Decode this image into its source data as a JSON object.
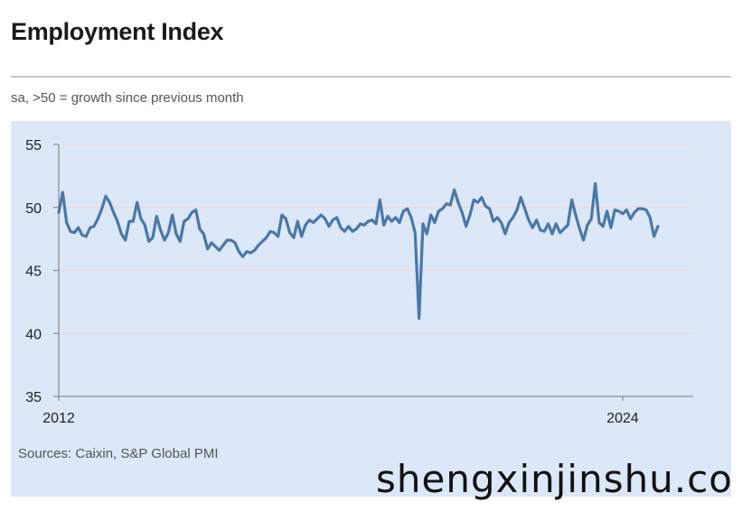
{
  "header": {
    "title": "Employment Index",
    "subtitle": "sa, >50 = growth since previous month"
  },
  "footer": {
    "source": "Sources: Caixin, S&P Global PMI"
  },
  "watermark": "shengxinjinshu.co",
  "colors": {
    "panel_background": "#dce7f7",
    "line": "#4a78a8",
    "axis": "#8a8a8a",
    "gridline": "#f2d9cf"
  },
  "chart_data": {
    "type": "line",
    "title": "Employment Index",
    "subtitle": "sa, >50 = growth since previous month",
    "xlabel": "",
    "ylabel": "",
    "x_ticks": [
      "2012",
      "2024"
    ],
    "y_ticks": [
      35,
      40,
      45,
      50,
      55
    ],
    "ylim": [
      35,
      55
    ],
    "xlim": [
      "2012-01",
      "2025-07"
    ],
    "grid": true,
    "legend": "none",
    "series": [
      {
        "x_start": "2012-01",
        "frequency": "monthly",
        "values": [
          49.6,
          51.2,
          48.8,
          48.1,
          48.0,
          48.4,
          47.8,
          47.7,
          48.4,
          48.5,
          49.1,
          49.9,
          50.9,
          50.4,
          49.6,
          48.9,
          47.9,
          47.4,
          48.9,
          48.9,
          50.4,
          49.1,
          48.6,
          47.3,
          47.6,
          49.3,
          48.2,
          47.4,
          48.0,
          49.4,
          47.9,
          47.3,
          48.9,
          49.1,
          49.6,
          49.8,
          48.3,
          47.9,
          46.7,
          47.2,
          46.9,
          46.6,
          47.0,
          47.4,
          47.4,
          47.2,
          46.5,
          46.1,
          46.5,
          46.4,
          46.6,
          47.0,
          47.3,
          47.6,
          48.1,
          48.0,
          47.7,
          49.4,
          49.1,
          48.0,
          47.6,
          48.9,
          47.7,
          48.6,
          49.0,
          48.8,
          49.1,
          49.4,
          49.1,
          48.5,
          49.0,
          49.2,
          48.4,
          48.1,
          48.5,
          48.1,
          48.3,
          48.7,
          48.6,
          48.9,
          49.0,
          48.7,
          50.6,
          48.6,
          49.3,
          48.9,
          49.2,
          48.8,
          49.7,
          49.9,
          49.2,
          48.0,
          41.2,
          48.7,
          47.9,
          49.4,
          48.8,
          49.7,
          49.9,
          50.3,
          50.2,
          51.4,
          50.4,
          49.6,
          48.5,
          49.4,
          50.6,
          50.4,
          50.8,
          50.1,
          49.9,
          48.9,
          49.2,
          48.8,
          47.9,
          48.8,
          49.2,
          49.8,
          50.8,
          49.9,
          49.0,
          48.4,
          49.0,
          48.2,
          48.1,
          48.7,
          47.9,
          48.7,
          48.0,
          48.3,
          48.6,
          50.6,
          49.4,
          48.3,
          47.4,
          48.6,
          49.1,
          51.9,
          48.8,
          48.5,
          49.7,
          48.4,
          49.8,
          49.7,
          49.5,
          49.8,
          49.1,
          49.6,
          49.9,
          49.9,
          49.8,
          49.2,
          47.7,
          48.5
        ]
      }
    ]
  }
}
